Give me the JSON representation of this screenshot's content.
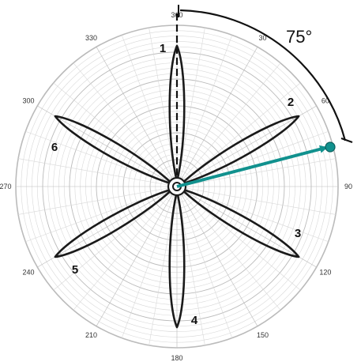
{
  "diagram": {
    "angle_ticks": [
      "360",
      "30",
      "60",
      "90",
      "120",
      "150",
      "180",
      "210",
      "240",
      "270",
      "300",
      "330"
    ],
    "petals": [
      {
        "label": "1",
        "angle": 0
      },
      {
        "label": "2",
        "angle": 60
      },
      {
        "label": "3",
        "angle": 120
      },
      {
        "label": "4",
        "angle": 180
      },
      {
        "label": "5",
        "angle": 240
      },
      {
        "label": "6",
        "angle": 300
      }
    ],
    "angle_annotation": {
      "text": "75°",
      "value": 75
    },
    "colors": {
      "grid": "#d8d8d8",
      "grid_major": "#bbbbbb",
      "petal_stroke": "#1a1a1a",
      "arrow": "#11918e"
    }
  }
}
